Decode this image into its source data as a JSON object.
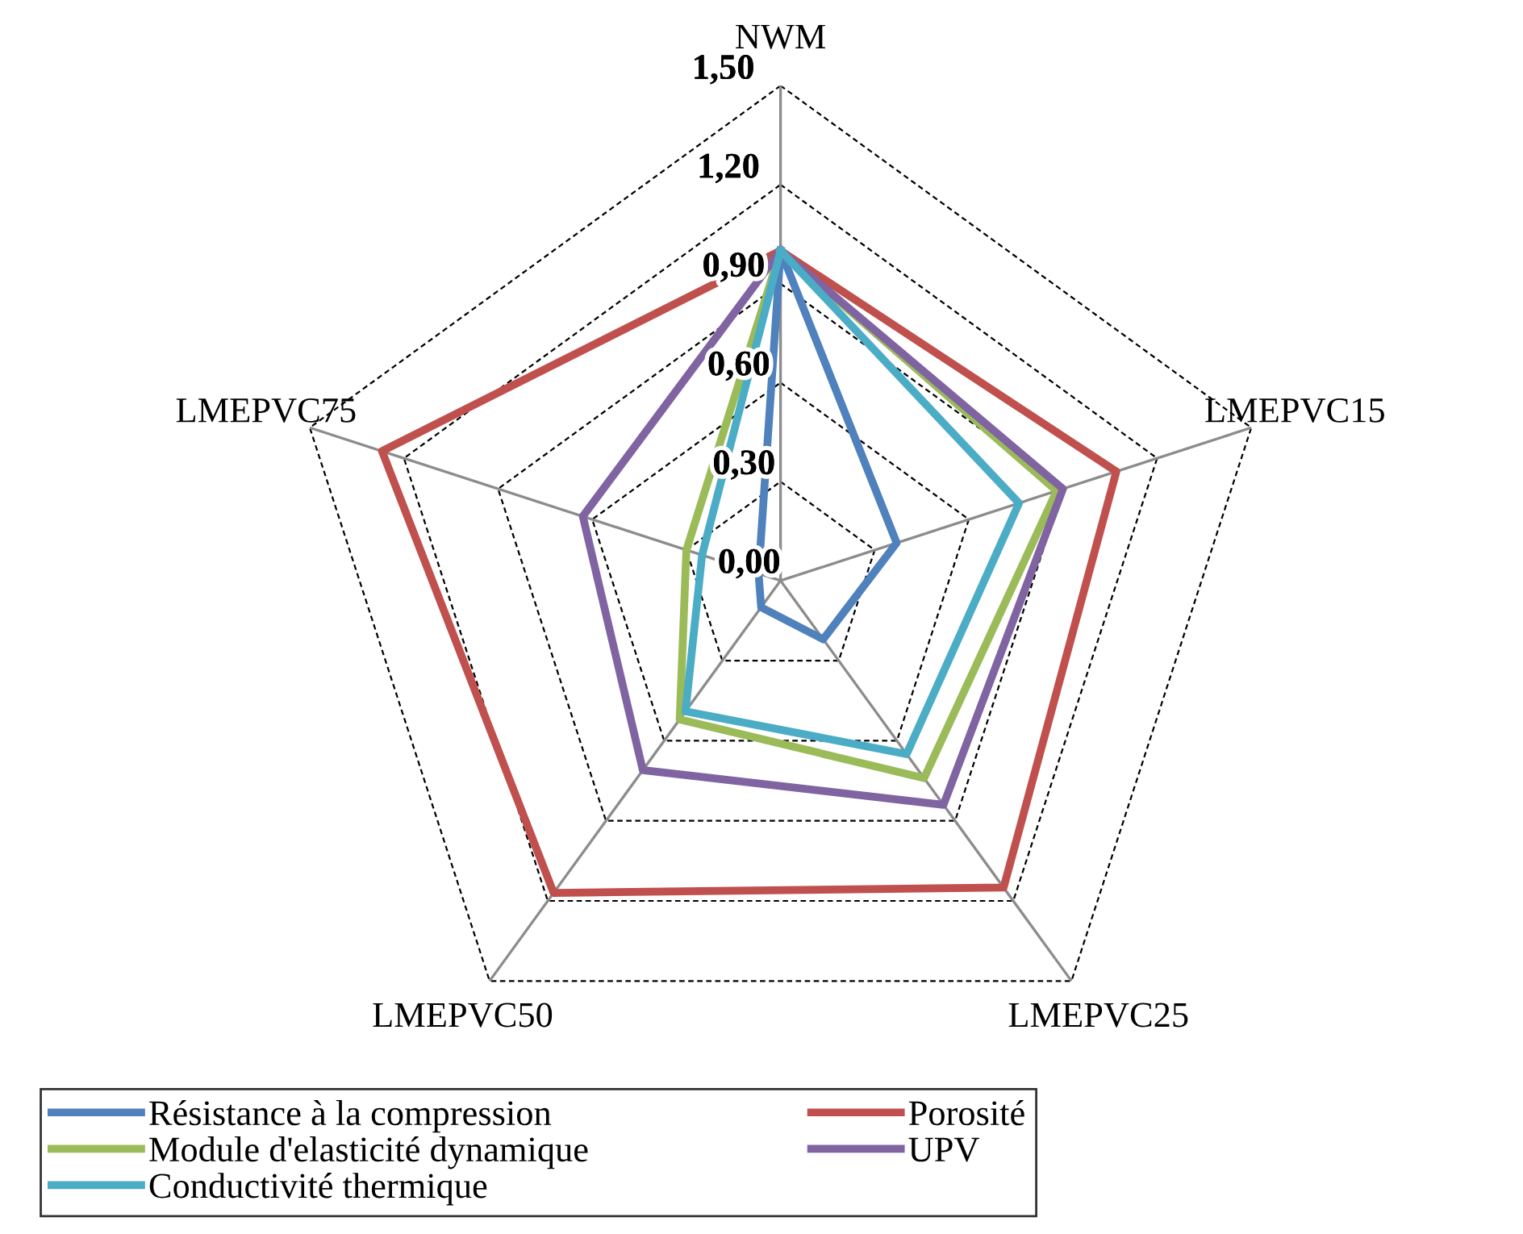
{
  "chart_data": {
    "type": "radar",
    "categories": [
      "NWM",
      "LMEPVC15",
      "LMEPVC25",
      "LMEPVC50",
      "LMEPVC75"
    ],
    "ylim": [
      0,
      1.5
    ],
    "yticks": [
      {
        "value": 0,
        "label": "0,00"
      },
      {
        "value": 0.3,
        "label": "0,30"
      },
      {
        "value": 0.6,
        "label": "0,60"
      },
      {
        "value": 0.9,
        "label": "0,90"
      },
      {
        "value": 1.2,
        "label": "1,20"
      },
      {
        "value": 1.5,
        "label": "1,50"
      }
    ],
    "grid": true,
    "legend": "bottom",
    "series": [
      {
        "name": "Résistance à la compression",
        "color": "#4f81bd",
        "values": [
          1.0,
          0.37,
          0.22,
          0.1,
          0.07
        ]
      },
      {
        "name": "Porosité",
        "color": "#c0504d",
        "values": [
          1.0,
          1.07,
          1.15,
          1.17,
          1.27
        ]
      },
      {
        "name": "Module d'elasticité dynamique",
        "color": "#9bbb59",
        "values": [
          1.0,
          0.88,
          0.74,
          0.52,
          0.3
        ]
      },
      {
        "name": "UPV",
        "color": "#8064a2",
        "values": [
          1.0,
          0.9,
          0.84,
          0.71,
          0.63
        ]
      },
      {
        "name": "Conductivité thermique",
        "color": "#4bacc6",
        "values": [
          1.0,
          0.76,
          0.65,
          0.49,
          0.25
        ]
      }
    ]
  }
}
